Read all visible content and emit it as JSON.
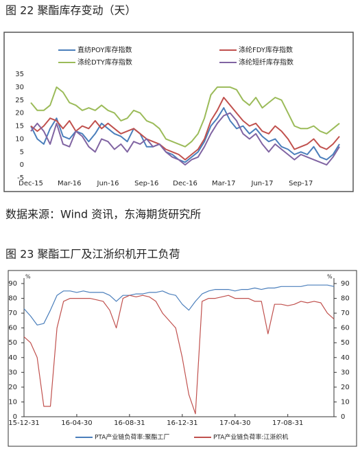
{
  "chart_data": [
    {
      "type": "line",
      "title": "图 22 聚酯库存变动（天）",
      "categories": [
        "Dec-15",
        null,
        null,
        null,
        null,
        null,
        "Mar-16",
        null,
        null,
        null,
        null,
        null,
        "Jun-16",
        null,
        null,
        null,
        null,
        null,
        "Sep-16",
        null,
        null,
        null,
        null,
        null,
        "Dec-16",
        null,
        null,
        null,
        null,
        null,
        "Mar-17",
        null,
        null,
        null,
        null,
        null,
        "Jun-17",
        null,
        null,
        null,
        null,
        null,
        "Sep-17",
        null,
        null,
        null,
        null,
        null,
        null
      ],
      "series": [
        {
          "name": "直纺POY库存指数",
          "color": "#4a7ebb",
          "values": [
            15,
            10,
            8,
            14,
            18,
            11,
            10,
            13,
            12,
            9,
            12,
            16,
            14,
            12,
            11,
            9,
            14,
            12,
            7,
            7,
            8,
            5,
            4,
            2,
            1,
            3,
            5,
            9,
            15,
            18,
            22,
            17,
            14,
            15,
            12,
            14,
            11,
            9,
            10,
            7,
            6,
            4,
            5,
            4,
            7,
            3,
            2,
            4,
            8
          ]
        },
        {
          "name": "涤纶FDY库存指数",
          "color": "#c0504d",
          "values": [
            15,
            13,
            15,
            18,
            17,
            14,
            17,
            13,
            15,
            14,
            17,
            14,
            16,
            14,
            12,
            13,
            14,
            12,
            10,
            9,
            8,
            6,
            5,
            4,
            2,
            4,
            6,
            10,
            17,
            21,
            26,
            23,
            20,
            17,
            15,
            16,
            13,
            12,
            15,
            13,
            10,
            6,
            7,
            8,
            10,
            7,
            6,
            8,
            11
          ]
        },
        {
          "name": "涤纶DTY库存指数",
          "color": "#9bbb59",
          "values": [
            24,
            21,
            21,
            23,
            30,
            28,
            24,
            23,
            21,
            22,
            21,
            23,
            21,
            20,
            17,
            18,
            21,
            20,
            17,
            16,
            14,
            10,
            9,
            8,
            7,
            9,
            12,
            18,
            27,
            30,
            30,
            30,
            29,
            25,
            23,
            26,
            22,
            24,
            26,
            25,
            20,
            15,
            14,
            14,
            15,
            13,
            12,
            14,
            16
          ]
        },
        {
          "name": "涤纶短纤库存指数",
          "color": "#8064a2",
          "values": [
            13,
            16,
            13,
            8,
            16,
            8,
            7,
            13,
            11,
            7,
            5,
            10,
            9,
            6,
            8,
            5,
            9,
            8,
            10,
            7,
            8,
            5,
            3,
            2,
            0,
            2,
            3,
            7,
            12,
            16,
            19,
            20,
            17,
            12,
            10,
            12,
            8,
            5,
            8,
            6,
            4,
            2,
            4,
            3,
            2,
            1,
            0,
            3,
            7
          ]
        }
      ],
      "ylim": [
        -5,
        35
      ],
      "yticks": [
        -5,
        0,
        5,
        10,
        15,
        20,
        25,
        30,
        35
      ],
      "grid": false,
      "legend": "top"
    },
    {
      "type": "line",
      "title": "图 23 聚酯工厂及江浙织机开工负荷",
      "categories": [
        "15-12-31",
        null,
        null,
        null,
        null,
        null,
        null,
        null,
        "16-04-30",
        null,
        null,
        null,
        null,
        null,
        null,
        null,
        "16-08-31",
        null,
        null,
        null,
        null,
        null,
        null,
        null,
        "16-12-31",
        null,
        null,
        null,
        null,
        null,
        null,
        null,
        "17-04-30",
        null,
        null,
        null,
        null,
        null,
        null,
        null,
        "17-08-31",
        null,
        null,
        null,
        null,
        null,
        null,
        null
      ],
      "series": [
        {
          "name": "PTA产业链负荷率:聚酯工厂",
          "color": "#4a7ebb",
          "values": [
            73,
            68,
            62,
            63,
            72,
            82,
            85,
            85,
            84,
            85,
            84,
            84,
            84,
            82,
            78,
            82,
            82,
            83,
            83,
            84,
            84,
            85,
            83,
            82,
            76,
            72,
            78,
            83,
            85,
            86,
            86,
            86,
            85,
            86,
            86,
            87,
            86,
            87,
            87,
            88,
            88,
            88,
            88,
            89,
            89,
            89,
            89,
            88
          ]
        },
        {
          "name": "PTA产业链负荷率:江浙织机",
          "color": "#c0504d",
          "values": [
            54,
            50,
            40,
            7,
            7,
            60,
            78,
            80,
            80,
            80,
            80,
            79,
            78,
            72,
            60,
            80,
            82,
            81,
            82,
            81,
            78,
            70,
            65,
            60,
            40,
            15,
            2,
            78,
            80,
            80,
            81,
            82,
            80,
            80,
            80,
            78,
            78,
            56,
            76,
            76,
            75,
            76,
            78,
            77,
            78,
            77,
            70,
            66
          ]
        }
      ],
      "yunit": "%",
      "y2unit": "%",
      "ylim": [
        0,
        90
      ],
      "yticks": [
        0,
        10,
        20,
        30,
        40,
        50,
        60,
        70,
        80,
        90
      ],
      "y2lim": [
        0,
        90
      ],
      "y2ticks": [
        0,
        10,
        20,
        30,
        40,
        50,
        60,
        70,
        80,
        90
      ],
      "grid": false,
      "legend": "bottom"
    }
  ],
  "source": "数据来源：Wind 资讯，东海期货研究所"
}
